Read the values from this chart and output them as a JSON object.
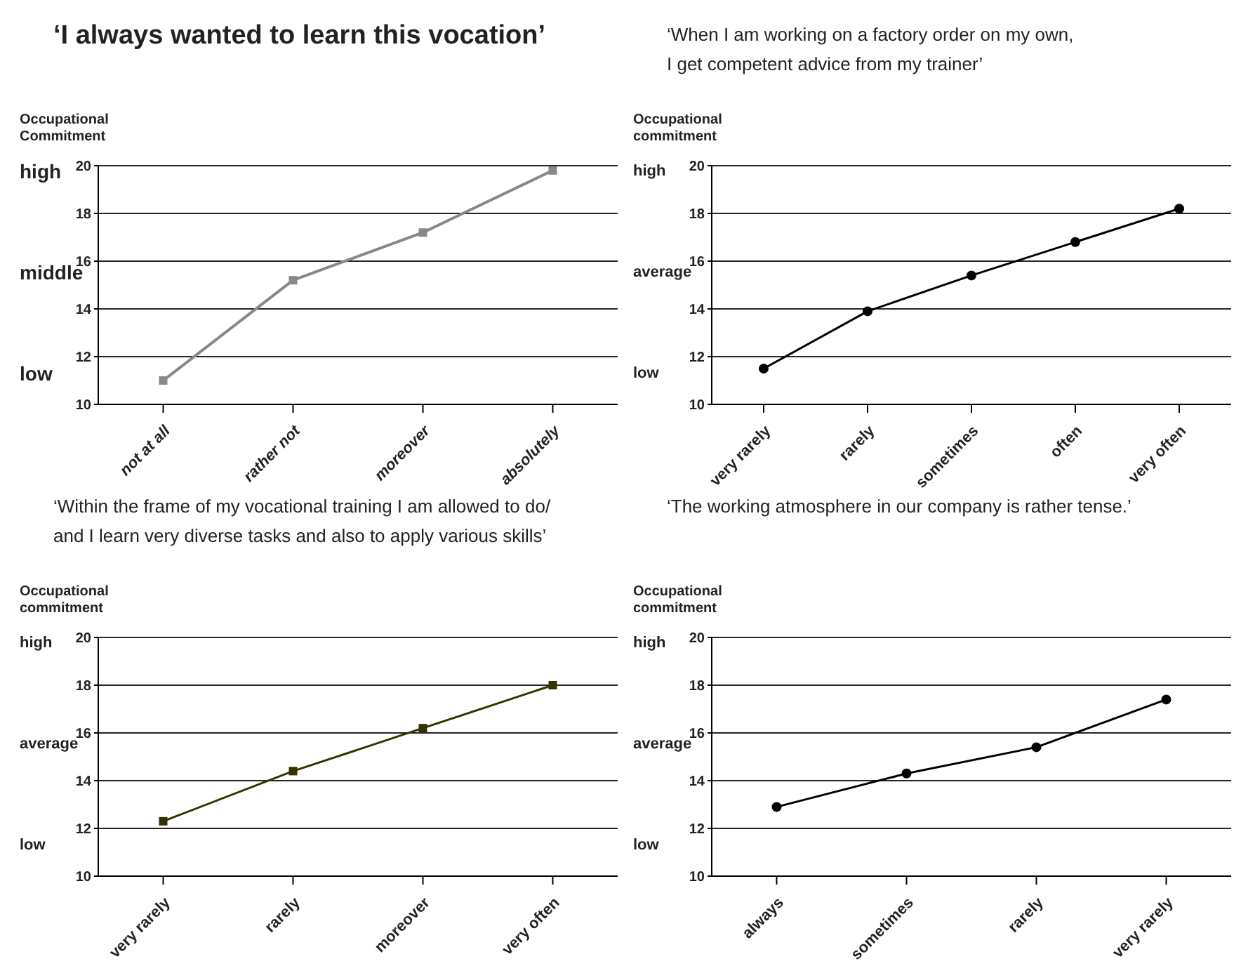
{
  "chart_data": [
    {
      "type": "line",
      "title": "‘I always wanted to learn this vocation’",
      "ylabel": "Occupational\nCommitment",
      "categories": [
        "not at all",
        "rather not",
        "moreover",
        "absolutely"
      ],
      "series": [
        {
          "color": "#888888",
          "values": [
            11.0,
            15.2,
            17.2,
            19.8
          ]
        }
      ],
      "ylim": [
        10,
        20
      ],
      "yticks": [
        10,
        12,
        14,
        16,
        18,
        20
      ],
      "grid": "y",
      "legend": false,
      "marker": "square",
      "line_style": "solid",
      "annotations": [
        "high",
        "middle",
        "low"
      ]
    },
    {
      "type": "line",
      "title": "‘When I am working on a factory order on my own,\nI get competent advice from my trainer’",
      "ylabel": "Occupational\ncommitment",
      "categories": [
        "very rarely",
        "rarely",
        "sometimes",
        "often",
        "very often"
      ],
      "series": [
        {
          "color": "#000000",
          "values": [
            11.5,
            13.9,
            15.4,
            16.8,
            18.2
          ]
        }
      ],
      "ylim": [
        10,
        20
      ],
      "yticks": [
        10,
        12,
        14,
        16,
        18,
        20
      ],
      "grid": "y",
      "legend": false,
      "marker": "circle",
      "line_style": "solid",
      "annotations": [
        "high",
        "average",
        "low"
      ]
    },
    {
      "type": "line",
      "title": "‘Within the frame of my vocational training I am allowed to do/\nand I learn very diverse tasks and also to apply various skills’",
      "ylabel": "Occupational\ncommitment",
      "categories": [
        "very rarely",
        "rarely",
        "moreover",
        "very often"
      ],
      "series": [
        {
          "color": "#333300",
          "values": [
            12.3,
            14.4,
            16.2,
            18.0
          ]
        }
      ],
      "ylim": [
        10,
        20
      ],
      "yticks": [
        10,
        12,
        14,
        16,
        18,
        20
      ],
      "grid": "y",
      "legend": false,
      "marker": "square",
      "line_style": "solid",
      "annotations": [
        "high",
        "average",
        "low"
      ]
    },
    {
      "type": "line",
      "title": "‘The working atmosphere in our company is rather tense.’",
      "ylabel": "Occupational\ncommitment",
      "categories": [
        "always",
        "sometimes",
        "rarely",
        "very rarely"
      ],
      "series": [
        {
          "color": "#000000",
          "values": [
            12.9,
            14.3,
            15.4,
            17.4
          ]
        }
      ],
      "ylim": [
        10,
        20
      ],
      "yticks": [
        10,
        12,
        14,
        16,
        18,
        20
      ],
      "grid": "y",
      "legend": false,
      "marker": "circle",
      "line_style": "solid",
      "annotations": [
        "high",
        "average",
        "low"
      ]
    }
  ]
}
